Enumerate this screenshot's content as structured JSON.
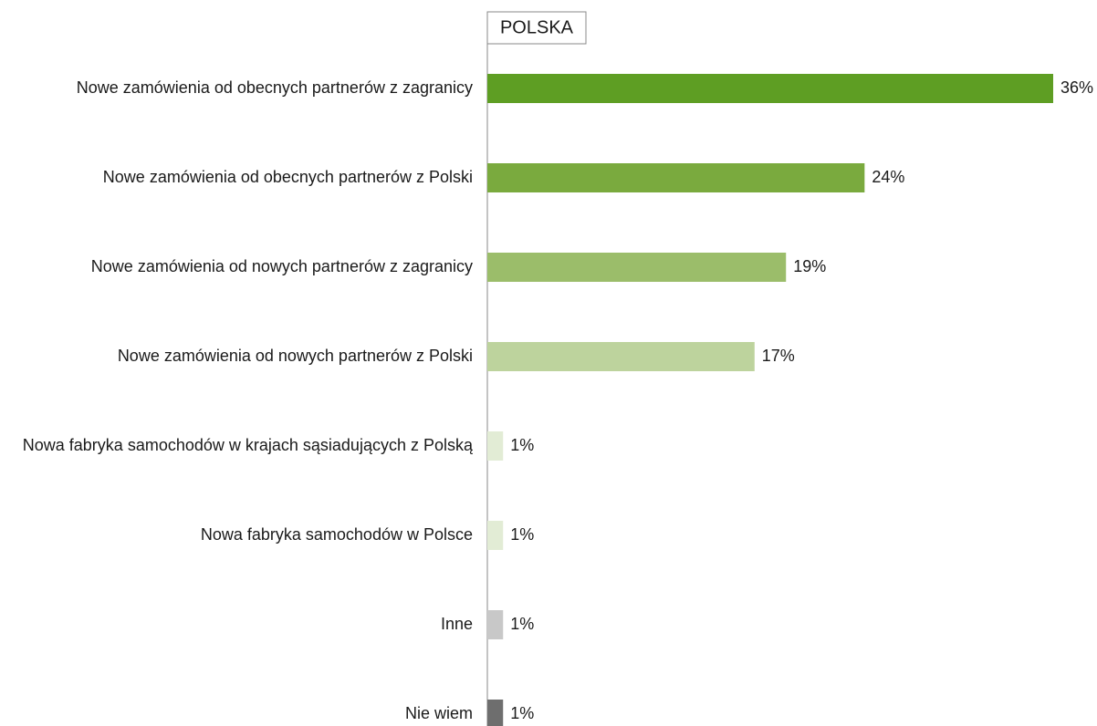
{
  "chart_data": {
    "type": "bar",
    "orientation": "horizontal",
    "title": "POLSKA",
    "categories": [
      "Nowe zamówienia od obecnych partnerów z zagranicy",
      "Nowe zamówienia od obecnych partnerów z Polski",
      "Nowe zamówienia od nowych partnerów z zagranicy",
      "Nowe zamówienia od nowych partnerów z Polski",
      "Nowa fabryka samochodów w krajach sąsiadujących z Polską",
      "Nowa fabryka samochodów w Polsce",
      "Inne",
      "Nie wiem"
    ],
    "values": [
      36,
      24,
      19,
      17,
      1,
      1,
      1,
      1
    ],
    "value_labels": [
      "36%",
      "24%",
      "19%",
      "17%",
      "1%",
      "1%",
      "1%",
      "1%"
    ],
    "colors": [
      "#5e9e23",
      "#7aaa3e",
      "#9bbd6a",
      "#bdd39d",
      "#e2ecd5",
      "#e2ecd5",
      "#c8c8c8",
      "#6e6e6e"
    ],
    "xlim": [
      0,
      36
    ]
  }
}
